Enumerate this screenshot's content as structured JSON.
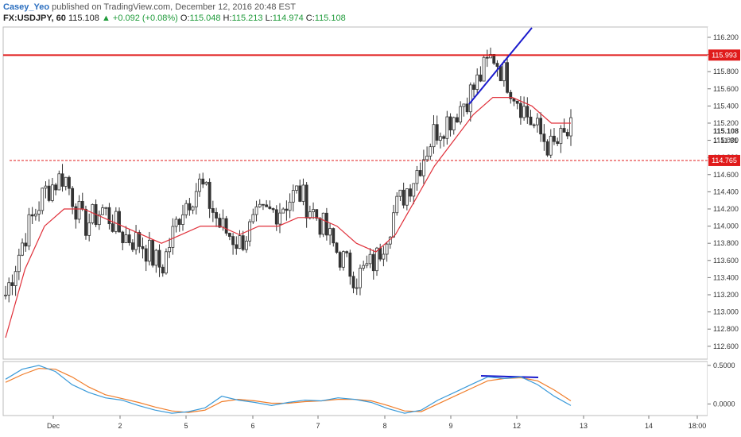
{
  "header": {
    "author": "Casey_Yeo",
    "published_text": "published on TradingView.com, December 12, 2016 20:48 EST",
    "symbol": "FX:USDJPY, 60",
    "last": "115.108",
    "change": "▲ +0.092 (+0.08%)",
    "o_label": "O:",
    "o_value": "115.048",
    "h_label": "H:",
    "h_value": "115.213",
    "l_label": "L:",
    "l_value": "114.974",
    "c_label": "C:",
    "c_value": "115.108"
  },
  "colors": {
    "candle": "#333333",
    "ma": "#e0303a",
    "resistance": "#e01b1b",
    "support": "#e01b1b",
    "trendline": "#1a1acc",
    "osc_fast": "#3a9ad9",
    "osc_slow": "#f07d2a",
    "axis_bg": "#ffffff",
    "grid": "#e6e6e6"
  },
  "price_axis": {
    "ticks": [
      "116.200",
      "116.000",
      "115.800",
      "115.600",
      "115.400",
      "115.200",
      "115.000",
      "114.800",
      "114.600",
      "114.400",
      "114.200",
      "114.000",
      "113.800",
      "113.600",
      "113.400",
      "113.200",
      "113.000",
      "112.800",
      "112.600"
    ],
    "current_price": "115.108",
    "countdown": "11:31",
    "countdown_prefix": "1'"
  },
  "levels": {
    "resistance": {
      "price": 115.993,
      "label": "115.993"
    },
    "support": {
      "price": 114.765,
      "label": "114.765"
    }
  },
  "osc_axis": {
    "ticks": [
      "0.5000",
      "0.0000"
    ]
  },
  "time_axis": {
    "ticks": [
      "Dec",
      "2",
      "5",
      "6",
      "7",
      "8",
      "9",
      "12",
      "13",
      "14",
      "18:00"
    ]
  },
  "chart_data": {
    "type": "candlestick",
    "title": "FX:USDJPY, 60",
    "ylim": [
      112.45,
      116.32
    ],
    "x": [
      "Dec",
      "2",
      "5",
      "6",
      "7",
      "8",
      "9",
      "12",
      "13",
      "14",
      "18:00"
    ],
    "approximate_closes": [
      113.2,
      113.9,
      114.4,
      114.6,
      114.0,
      114.2,
      113.9,
      113.8,
      113.5,
      114.2,
      114.5,
      114.0,
      113.8,
      114.1,
      114.2,
      114.4,
      114.1,
      113.7,
      113.4,
      113.6,
      114.2,
      114.6,
      115.1,
      115.3,
      115.6,
      116.0,
      115.6,
      115.2,
      114.9,
      115.1
    ],
    "ma_approx": [
      112.7,
      113.5,
      114.0,
      114.2,
      114.2,
      114.1,
      114.0,
      113.9,
      113.8,
      113.9,
      114.0,
      114.0,
      113.9,
      114.0,
      114.0,
      114.1,
      114.1,
      114.0,
      113.8,
      113.7,
      113.9,
      114.3,
      114.7,
      115.0,
      115.3,
      115.5,
      115.5,
      115.4,
      115.2,
      115.2
    ],
    "series": [
      {
        "name": "USDJPY 60"
      }
    ],
    "annotations": [
      {
        "type": "horizontal",
        "price": 115.993
      },
      {
        "type": "horizontal_dashed",
        "price": 114.765
      },
      {
        "type": "trendline",
        "from": [
          115.4
        ],
        "to": [
          116.3
        ]
      }
    ],
    "oscillator": {
      "type": "line",
      "ylim": [
        -0.15,
        0.55
      ],
      "fast": [
        0.32,
        0.45,
        0.5,
        0.42,
        0.25,
        0.15,
        0.08,
        0.05,
        -0.02,
        -0.08,
        -0.12,
        -0.1,
        -0.05,
        0.1,
        0.05,
        0.02,
        -0.02,
        0.02,
        0.05,
        0.04,
        0.08,
        0.06,
        0.02,
        -0.06,
        -0.12,
        -0.08,
        0.05,
        0.15,
        0.25,
        0.35,
        0.33,
        0.35,
        0.25,
        0.1,
        -0.02
      ],
      "slow": [
        0.28,
        0.38,
        0.46,
        0.45,
        0.35,
        0.22,
        0.12,
        0.07,
        0.02,
        -0.04,
        -0.09,
        -0.11,
        -0.08,
        0.03,
        0.06,
        0.04,
        0.01,
        0.01,
        0.03,
        0.04,
        0.06,
        0.06,
        0.04,
        -0.02,
        -0.09,
        -0.1,
        0.0,
        0.1,
        0.2,
        0.3,
        0.33,
        0.34,
        0.3,
        0.18,
        0.04
      ]
    }
  }
}
